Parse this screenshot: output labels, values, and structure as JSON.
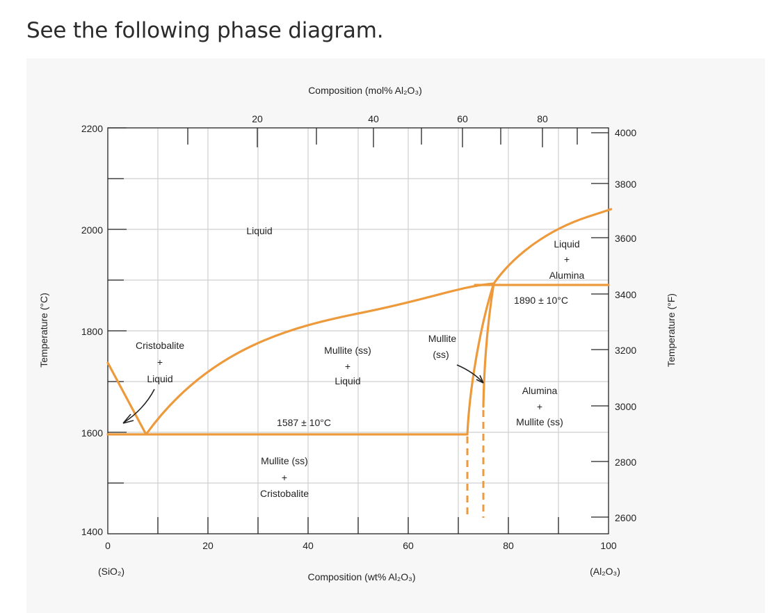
{
  "heading": "See the following phase diagram.",
  "diagram": {
    "top_axis_label": "Composition (mol% Al₂O₃)",
    "bottom_axis_label": "Composition (wt% Al₂O₃)",
    "left_axis_label": "Temperature (°C)",
    "right_axis_label": "Temperature (°F)",
    "left_ticks": [
      "2200",
      "2000",
      "1800",
      "1600",
      "1400"
    ],
    "right_ticks": [
      "4000",
      "3800",
      "3600",
      "3400",
      "3200",
      "3000",
      "2800",
      "2600"
    ],
    "bottom_ticks": [
      "0",
      "20",
      "40",
      "60",
      "80",
      "100"
    ],
    "top_ticks": [
      "20",
      "40",
      "60",
      "80"
    ],
    "left_end_label": "(SiO₂)",
    "right_end_label": "(Al₂O₃)",
    "regions": {
      "liquid": "Liquid",
      "cristobalite_liquid": [
        "Cristobalite",
        "+",
        "Liquid"
      ],
      "mullite_liquid": [
        "Mullite (ss)",
        "+",
        "Liquid"
      ],
      "mullite_ss": [
        "Mullite",
        "(ss)"
      ],
      "liquid_alumina": [
        "Liquid",
        "+",
        "Alumina"
      ],
      "alumina_mullite": [
        "Alumina",
        "+",
        "Mullite (ss)"
      ],
      "mullite_cristobalite": [
        "Mullite (ss)",
        "+",
        "Cristobalite"
      ]
    },
    "eutectic_low": "1587 ± 10°C",
    "eutectic_high": "1890 ± 10°C",
    "colors": {
      "phase_line": "#ec9a3c",
      "grid": "#cfcfcf",
      "axis": "#222222"
    }
  }
}
